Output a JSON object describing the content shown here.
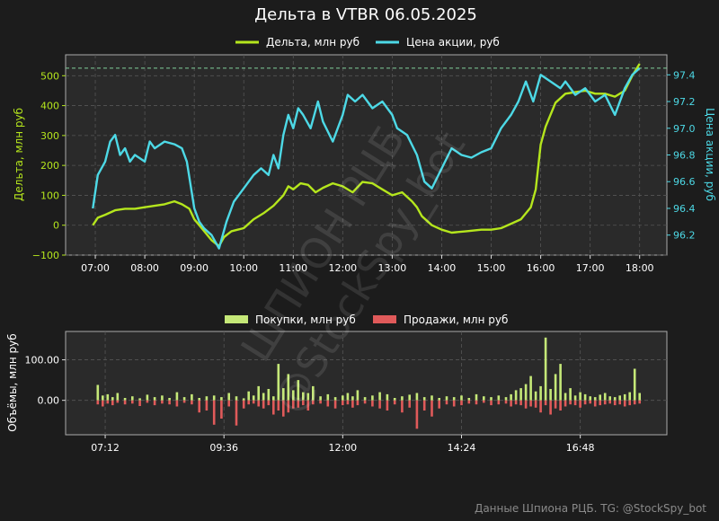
{
  "colors": {
    "background": "#1c1c1c",
    "plot_bg": "#2a2a2a",
    "grid": "#555555",
    "delta": "#b5e61d",
    "price": "#4dd9e6",
    "buys": "#c5e878",
    "sells": "#e05a5a",
    "dashed_ref": "#7fcf9a"
  },
  "footer": "Данные Шпиона РЦБ. TG: @StockSpy_bot",
  "watermark": [
    "ШПИОН РЦБ",
    "@StockSpy_bot"
  ],
  "chart_data": [
    {
      "type": "line",
      "title": "Дельта в VTBR 06.05.2025",
      "legend": [
        "Дельта, млн руб",
        "Цена акции, руб"
      ],
      "legend_position": "top-center",
      "grid": true,
      "ylabel": "Дельта, млн руб",
      "y2label": "Цена акции, руб",
      "xlim": [
        6.4,
        18.55
      ],
      "ylim": [
        -100,
        570
      ],
      "y2lim": [
        96.05,
        97.55
      ],
      "xticks": [
        7,
        8,
        9,
        10,
        11,
        12,
        13,
        14,
        15,
        16,
        17,
        18
      ],
      "xtick_labels": [
        "07:00",
        "08:00",
        "09:00",
        "10:00",
        "11:00",
        "12:00",
        "13:00",
        "14:00",
        "15:00",
        "16:00",
        "17:00",
        "18:00"
      ],
      "yticks": [
        -100,
        0,
        100,
        200,
        300,
        400,
        500
      ],
      "ytick_labels": [
        "−100",
        "0",
        "100",
        "200",
        "300",
        "400",
        "500"
      ],
      "y2ticks": [
        96.2,
        96.4,
        96.6,
        96.8,
        97.0,
        97.2,
        97.4
      ],
      "y2tick_labels": [
        "96.2",
        "96.4",
        "96.6",
        "96.8",
        "97.0",
        "97.2",
        "97.4"
      ],
      "reference_line": 97.45,
      "series": [
        {
          "name": "Дельта, млн руб",
          "axis": "left",
          "x": [
            6.95,
            7.05,
            7.2,
            7.4,
            7.6,
            7.8,
            8.0,
            8.2,
            8.4,
            8.6,
            8.75,
            8.9,
            9.0,
            9.1,
            9.2,
            9.35,
            9.5,
            9.6,
            9.75,
            10.0,
            10.2,
            10.4,
            10.6,
            10.8,
            10.9,
            11.0,
            11.15,
            11.3,
            11.45,
            11.6,
            11.8,
            12.0,
            12.2,
            12.4,
            12.6,
            12.8,
            13.0,
            13.2,
            13.4,
            13.5,
            13.6,
            13.8,
            14.0,
            14.2,
            14.5,
            14.8,
            15.0,
            15.2,
            15.4,
            15.6,
            15.8,
            15.9,
            16.0,
            16.1,
            16.2,
            16.3,
            16.5,
            16.7,
            16.9,
            17.1,
            17.3,
            17.5,
            17.7,
            17.85,
            18.0
          ],
          "y": [
            0,
            25,
            35,
            50,
            55,
            55,
            60,
            65,
            70,
            80,
            70,
            55,
            20,
            0,
            -20,
            -50,
            -70,
            -40,
            -20,
            -10,
            20,
            40,
            65,
            100,
            130,
            120,
            140,
            135,
            110,
            125,
            140,
            130,
            110,
            145,
            140,
            120,
            100,
            110,
            80,
            60,
            30,
            0,
            -15,
            -25,
            -20,
            -15,
            -15,
            -10,
            5,
            20,
            60,
            120,
            270,
            330,
            370,
            410,
            440,
            445,
            450,
            440,
            440,
            430,
            450,
            500,
            540
          ]
        },
        {
          "name": "Цена акции, руб",
          "axis": "right",
          "x": [
            6.95,
            7.05,
            7.2,
            7.3,
            7.4,
            7.5,
            7.6,
            7.7,
            7.8,
            8.0,
            8.1,
            8.2,
            8.4,
            8.6,
            8.75,
            8.85,
            9.0,
            9.1,
            9.2,
            9.35,
            9.5,
            9.65,
            9.8,
            10.0,
            10.2,
            10.35,
            10.5,
            10.6,
            10.7,
            10.8,
            10.9,
            11.0,
            11.1,
            11.2,
            11.35,
            11.5,
            11.6,
            11.8,
            12.0,
            12.1,
            12.25,
            12.4,
            12.6,
            12.8,
            13.0,
            13.1,
            13.3,
            13.5,
            13.65,
            13.8,
            14.0,
            14.2,
            14.4,
            14.6,
            14.8,
            15.0,
            15.2,
            15.4,
            15.55,
            15.7,
            15.85,
            16.0,
            16.2,
            16.4,
            16.5,
            16.7,
            16.9,
            17.1,
            17.3,
            17.5,
            17.7,
            17.85,
            18.0
          ],
          "y": [
            96.4,
            96.65,
            96.75,
            96.9,
            96.95,
            96.8,
            96.85,
            96.75,
            96.8,
            96.75,
            96.9,
            96.85,
            96.9,
            96.88,
            96.85,
            96.75,
            96.4,
            96.3,
            96.25,
            96.2,
            96.1,
            96.3,
            96.45,
            96.55,
            96.65,
            96.7,
            96.65,
            96.8,
            96.7,
            96.95,
            97.1,
            97.0,
            97.15,
            97.1,
            97.0,
            97.2,
            97.05,
            96.9,
            97.1,
            97.25,
            97.2,
            97.25,
            97.15,
            97.2,
            97.1,
            97.0,
            96.95,
            96.8,
            96.6,
            96.55,
            96.7,
            96.85,
            96.8,
            96.78,
            96.82,
            96.85,
            97.0,
            97.1,
            97.2,
            97.35,
            97.2,
            97.4,
            97.35,
            97.3,
            97.35,
            97.25,
            97.3,
            97.2,
            97.25,
            97.1,
            97.3,
            97.4,
            97.45
          ]
        }
      ]
    },
    {
      "type": "bar",
      "ylabel": "Объёмы, млн руб",
      "legend": [
        "Покупки, млн руб",
        "Продажи, млн руб"
      ],
      "legend_position": "top-center",
      "grid": true,
      "xlim": [
        6.4,
        18.55
      ],
      "ylim": [
        -85,
        170
      ],
      "yticks": [
        0,
        100
      ],
      "ytick_labels": [
        "0.00",
        "100.00"
      ],
      "xticks": [
        7.2,
        9.6,
        12.0,
        14.4,
        16.8
      ],
      "xtick_labels": [
        "07:12",
        "09:36",
        "12:00",
        "14:24",
        "16:48"
      ],
      "series": [
        {
          "name": "Покупки, млн руб",
          "x": [
            7.05,
            7.15,
            7.25,
            7.35,
            7.45,
            7.6,
            7.75,
            7.9,
            8.05,
            8.2,
            8.35,
            8.5,
            8.65,
            8.8,
            8.95,
            9.1,
            9.25,
            9.4,
            9.55,
            9.7,
            9.85,
            10.0,
            10.1,
            10.2,
            10.3,
            10.4,
            10.5,
            10.6,
            10.7,
            10.8,
            10.9,
            11.0,
            11.1,
            11.2,
            11.3,
            11.4,
            11.55,
            11.7,
            11.85,
            12.0,
            12.1,
            12.2,
            12.3,
            12.45,
            12.6,
            12.75,
            12.9,
            13.05,
            13.2,
            13.35,
            13.5,
            13.65,
            13.8,
            13.95,
            14.1,
            14.25,
            14.4,
            14.55,
            14.7,
            14.85,
            15.0,
            15.15,
            15.3,
            15.4,
            15.5,
            15.6,
            15.7,
            15.8,
            15.9,
            16.0,
            16.1,
            16.2,
            16.3,
            16.4,
            16.5,
            16.6,
            16.7,
            16.8,
            16.9,
            17.0,
            17.1,
            17.2,
            17.3,
            17.4,
            17.5,
            17.6,
            17.7,
            17.8,
            17.9,
            18.0
          ],
          "values": [
            38,
            12,
            15,
            8,
            18,
            6,
            10,
            5,
            14,
            8,
            12,
            6,
            20,
            8,
            15,
            6,
            10,
            12,
            8,
            18,
            10,
            5,
            22,
            12,
            35,
            18,
            28,
            10,
            90,
            30,
            65,
            25,
            50,
            20,
            18,
            35,
            10,
            15,
            8,
            12,
            18,
            10,
            25,
            8,
            12,
            20,
            15,
            6,
            10,
            14,
            18,
            8,
            12,
            6,
            10,
            8,
            12,
            6,
            15,
            10,
            8,
            12,
            8,
            15,
            25,
            30,
            40,
            60,
            22,
            35,
            155,
            28,
            65,
            90,
            18,
            30,
            12,
            20,
            15,
            10,
            8,
            14,
            18,
            10,
            8,
            12,
            15,
            20,
            78,
            18
          ]
        },
        {
          "name": "Продажи, млн руб",
          "x": [
            7.05,
            7.15,
            7.25,
            7.35,
            7.45,
            7.6,
            7.75,
            7.9,
            8.05,
            8.2,
            8.35,
            8.5,
            8.65,
            8.8,
            8.95,
            9.1,
            9.25,
            9.4,
            9.55,
            9.7,
            9.85,
            10.0,
            10.1,
            10.2,
            10.3,
            10.4,
            10.5,
            10.6,
            10.7,
            10.8,
            10.9,
            11.0,
            11.1,
            11.2,
            11.3,
            11.4,
            11.55,
            11.7,
            11.85,
            12.0,
            12.1,
            12.2,
            12.3,
            12.45,
            12.6,
            12.75,
            12.9,
            13.05,
            13.2,
            13.35,
            13.5,
            13.65,
            13.8,
            13.95,
            14.1,
            14.25,
            14.4,
            14.55,
            14.7,
            14.85,
            15.0,
            15.15,
            15.3,
            15.4,
            15.5,
            15.6,
            15.7,
            15.8,
            15.9,
            16.0,
            16.1,
            16.2,
            16.3,
            16.4,
            16.5,
            16.6,
            16.7,
            16.8,
            16.9,
            17.0,
            17.1,
            17.2,
            17.3,
            17.4,
            17.5,
            17.6,
            17.7,
            17.8,
            17.9,
            18.0
          ],
          "values": [
            -10,
            -15,
            -8,
            -12,
            -6,
            -10,
            -8,
            -14,
            -6,
            -12,
            -8,
            -10,
            -15,
            -6,
            -10,
            -30,
            -25,
            -60,
            -45,
            -15,
            -62,
            -20,
            -10,
            -8,
            -15,
            -20,
            -12,
            -35,
            -25,
            -40,
            -30,
            -20,
            -18,
            -12,
            -25,
            -10,
            -8,
            -15,
            -20,
            -12,
            -10,
            -18,
            -12,
            -8,
            -15,
            -20,
            -25,
            -10,
            -30,
            -18,
            -70,
            -25,
            -40,
            -20,
            -10,
            -15,
            -12,
            -8,
            -10,
            -6,
            -12,
            -10,
            -8,
            -15,
            -10,
            -12,
            -20,
            -15,
            -18,
            -30,
            -12,
            -35,
            -20,
            -25,
            -15,
            -10,
            -12,
            -18,
            -10,
            -8,
            -15,
            -12,
            -10,
            -8,
            -12,
            -10,
            -15,
            -12,
            -10,
            -8
          ]
        }
      ]
    }
  ]
}
